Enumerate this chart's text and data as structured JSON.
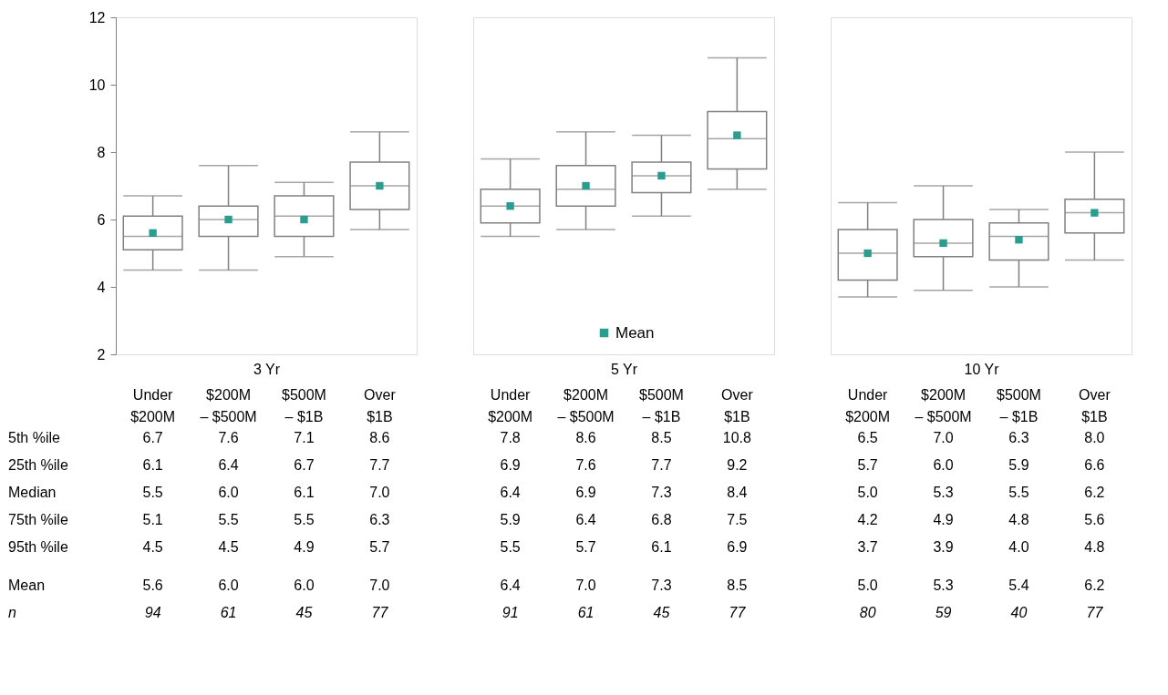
{
  "chart_data": [
    {
      "type": "box",
      "title": "3 Yr",
      "categories": [
        "Under $200M",
        "$200M – $500M",
        "$500M – $1B",
        "Over $1B"
      ],
      "ylim": [
        2,
        12
      ],
      "yticks": [
        2,
        4,
        6,
        8,
        10,
        12
      ],
      "boxes": [
        {
          "low": 4.5,
          "q1": 5.1,
          "median": 5.5,
          "q3": 6.1,
          "high": 6.7
        },
        {
          "low": 4.5,
          "q1": 5.5,
          "median": 6.0,
          "q3": 6.4,
          "high": 7.6
        },
        {
          "low": 4.9,
          "q1": 5.5,
          "median": 6.1,
          "q3": 6.7,
          "high": 7.1
        },
        {
          "low": 5.7,
          "q1": 6.3,
          "median": 7.0,
          "q3": 7.7,
          "high": 8.6
        }
      ],
      "series": [
        {
          "type": "scatter",
          "marker": "square",
          "color": "#2a9d8f",
          "x": [
            "Under $200M",
            "$200M – $500M",
            "$500M – $1B",
            "Over $1B"
          ],
          "values": [
            5.6,
            6.0,
            6.0,
            7.0
          ]
        }
      ],
      "annotations": [
        "5th %ile",
        "25th %ile",
        "Median",
        "75th %ile",
        "95th %ile",
        "Mean",
        "n",
        "6.7",
        "7.6",
        "7.1",
        "8.6",
        "6.1",
        "6.4",
        "6.7",
        "7.7",
        "5.5",
        "6.0",
        "6.1",
        "7.0",
        "5.1",
        "5.5",
        "5.5",
        "6.3",
        "4.5",
        "4.5",
        "4.9",
        "5.7",
        "5.6",
        "6.0",
        "6.0",
        "7.0",
        "94",
        "61",
        "45",
        "77"
      ]
    },
    {
      "type": "box",
      "title": "5 Yr",
      "categories": [
        "Under $200M",
        "$200M – $500M",
        "$500M – $1B",
        "Over $1B"
      ],
      "ylim": [
        2,
        12
      ],
      "yticks": [
        2,
        4,
        6,
        8,
        10,
        12
      ],
      "tick_labels": "x",
      "legend": "bottom",
      "boxes": [
        {
          "low": 5.5,
          "q1": 5.9,
          "median": 6.4,
          "q3": 6.9,
          "high": 7.8
        },
        {
          "low": 5.7,
          "q1": 6.4,
          "median": 6.9,
          "q3": 7.6,
          "high": 8.6
        },
        {
          "low": 6.1,
          "q1": 6.8,
          "median": 7.3,
          "q3": 7.7,
          "high": 8.5
        },
        {
          "low": 6.9,
          "q1": 7.5,
          "median": 8.4,
          "q3": 9.2,
          "high": 10.8
        }
      ],
      "series": [
        {
          "name": "Mean",
          "type": "scatter",
          "marker": "square",
          "color": "#2a9d8f",
          "x": [
            "Under $200M",
            "$200M – $500M",
            "$500M – $1B",
            "Over $1B"
          ],
          "values": [
            6.4,
            7.0,
            7.3,
            8.5
          ]
        }
      ],
      "annotations": [
        "7.8",
        "8.6",
        "8.5",
        "10.8",
        "6.9",
        "7.6",
        "7.7",
        "9.2",
        "6.4",
        "6.9",
        "7.3",
        "8.4",
        "5.9",
        "6.4",
        "6.8",
        "7.5",
        "5.5",
        "5.7",
        "6.1",
        "6.9",
        "6.4",
        "7.0",
        "7.3",
        "8.5",
        "91",
        "61",
        "45",
        "77"
      ]
    },
    {
      "type": "box",
      "title": "10 Yr",
      "categories": [
        "Under $200M",
        "$200M – $500M",
        "$500M – $1B",
        "Over $1B"
      ],
      "ylim": [
        2,
        12
      ],
      "yticks": [
        2,
        4,
        6,
        8,
        10,
        12
      ],
      "tick_labels": "x",
      "boxes": [
        {
          "low": 3.7,
          "q1": 4.2,
          "median": 5.0,
          "q3": 5.7,
          "high": 6.5
        },
        {
          "low": 3.9,
          "q1": 4.9,
          "median": 5.3,
          "q3": 6.0,
          "high": 7.0
        },
        {
          "low": 4.0,
          "q1": 4.8,
          "median": 5.5,
          "q3": 5.9,
          "high": 6.3
        },
        {
          "low": 4.8,
          "q1": 5.6,
          "median": 6.2,
          "q3": 6.6,
          "high": 8.0
        }
      ],
      "series": [
        {
          "type": "scatter",
          "marker": "square",
          "color": "#2a9d8f",
          "x": [
            "Under $200M",
            "$200M – $500M",
            "$500M – $1B",
            "Over $1B"
          ],
          "values": [
            5.0,
            5.3,
            5.4,
            6.2
          ]
        }
      ],
      "annotations": [
        "6.5",
        "7.0",
        "6.3",
        "8.0",
        "5.7",
        "6.0",
        "5.9",
        "6.6",
        "5.0",
        "5.3",
        "5.5",
        "6.2",
        "4.2",
        "4.9",
        "4.8",
        "5.6",
        "3.7",
        "3.9",
        "4.0",
        "4.8",
        "5.0",
        "5.3",
        "5.4",
        "6.2",
        "80",
        "59",
        "40",
        "77"
      ]
    }
  ]
}
